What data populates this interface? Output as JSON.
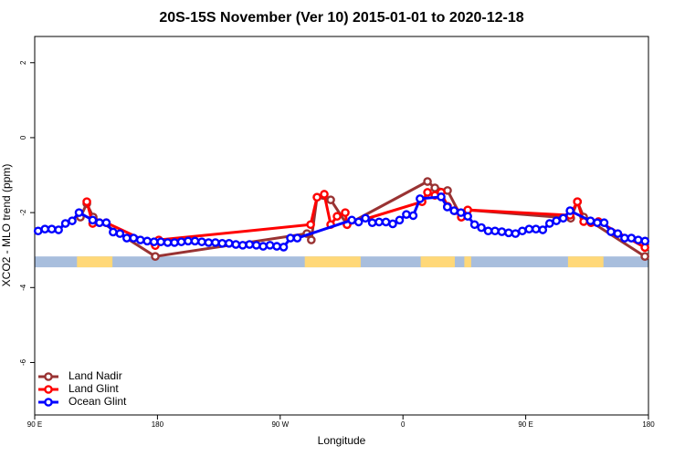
{
  "chart_data": {
    "type": "line",
    "title": "20S-15S November (Ver 10)   2015-01-01 to 2020-12-18",
    "xlabel": "Longitude",
    "ylabel": "XCO2 - MLO trend (ppm)",
    "xlim": [
      90,
      540
    ],
    "ylim": [
      -7.4,
      2.7
    ],
    "xticks": [
      {
        "value": 90,
        "label": "90 E"
      },
      180,
      {
        "value": 270,
        "label": "90 W"
      },
      {
        "value": 360,
        "label": "0"
      },
      {
        "value": 450,
        "label": "90 E"
      },
      {
        "value": 540,
        "label": "180"
      }
    ],
    "yticks": [
      -6,
      -4,
      -2,
      0,
      2
    ],
    "legend": "bottom-left",
    "surface_band": {
      "ylim": [
        -3.46,
        -3.17
      ],
      "ocean_color": "#a8bedd",
      "land_color": "#ffd878",
      "land": [
        [
          121,
          147
        ],
        [
          288,
          329
        ],
        [
          373,
          398
        ],
        [
          405,
          410
        ],
        [
          481,
          507
        ]
      ]
    },
    "series": [
      {
        "name": "Land Nadir",
        "color": "#993333",
        "x": [
          123.5,
          128.2,
          132.9,
          178.4,
          289.6,
          292.8,
          297,
          307,
          319,
          378,
          383.4,
          392.7,
          402.8,
          407.5,
          483,
          487.9,
          492.5,
          537.4
        ],
        "values": [
          -2.12,
          -1.76,
          -2.12,
          -3.17,
          -2.56,
          -2.73,
          -1.59,
          -1.66,
          -2.32,
          -1.17,
          -1.34,
          -1.41,
          -2.12,
          -1.93,
          -2.15,
          -1.71,
          -2.12,
          -3.17
        ]
      },
      {
        "name": "Land Glint",
        "color": "#ff0000",
        "x": [
          128.2,
          132.5,
          137.5,
          142.5,
          178.4,
          181,
          292.3,
          297,
          302.3,
          307,
          311.7,
          317.7,
          319,
          374,
          378,
          383.4,
          388,
          392.7,
          398,
          402.8,
          407.5,
          482.5,
          487.9,
          492.5,
          497.9,
          503.3,
          537.4
        ],
        "values": [
          -1.71,
          -2.29,
          -2.27,
          -2.27,
          -2.88,
          -2.73,
          -2.32,
          -1.59,
          -1.51,
          -2.32,
          -2.1,
          -2.0,
          -2.32,
          -1.71,
          -1.46,
          -1.54,
          -1.46,
          -1.83,
          -1.95,
          -2.12,
          -1.93,
          -2.07,
          -1.71,
          -2.24,
          -2.27,
          -2.24,
          -2.93
        ]
      },
      {
        "name": "Ocean Glint",
        "color": "#0000ff",
        "x": [
          92.5,
          97.5,
          102.5,
          107.5,
          112.5,
          117.5,
          122.5,
          132.5,
          137.5,
          142.5,
          147.5,
          152.5,
          157.5,
          162.5,
          167.5,
          172.5,
          177.5,
          182.5,
          187.5,
          192.5,
          197.5,
          202.5,
          207.5,
          212.5,
          217.5,
          222.5,
          227.5,
          232.5,
          237.5,
          242.5,
          247.5,
          252.5,
          257.5,
          262.5,
          267.5,
          272.5,
          277.5,
          282.5,
          322.5,
          327.5,
          332.5,
          337.5,
          342.5,
          347.5,
          352.5,
          357.5,
          362.5,
          367.5,
          372.5,
          388,
          392.5,
          397.5,
          402.5,
          407.5,
          412.5,
          417.5,
          422.5,
          427.5,
          432.5,
          437.5,
          442.5,
          447.5,
          452.5,
          457.5,
          462.5,
          467.5,
          472.5,
          477.5,
          482.5,
          497.5,
          502.5,
          507.5,
          512.5,
          517.5,
          522.5,
          527.5,
          532.5,
          537.5
        ],
        "values": [
          -2.49,
          -2.44,
          -2.44,
          -2.46,
          -2.29,
          -2.22,
          -2.0,
          -2.2,
          -2.27,
          -2.27,
          -2.52,
          -2.56,
          -2.68,
          -2.68,
          -2.73,
          -2.76,
          -2.78,
          -2.78,
          -2.8,
          -2.8,
          -2.78,
          -2.76,
          -2.76,
          -2.78,
          -2.8,
          -2.8,
          -2.82,
          -2.82,
          -2.85,
          -2.87,
          -2.85,
          -2.87,
          -2.9,
          -2.87,
          -2.9,
          -2.92,
          -2.68,
          -2.68,
          -2.2,
          -2.25,
          -2.15,
          -2.27,
          -2.25,
          -2.25,
          -2.3,
          -2.2,
          -2.05,
          -2.08,
          -1.63,
          -1.58,
          -1.85,
          -1.95,
          -2.0,
          -2.1,
          -2.32,
          -2.4,
          -2.49,
          -2.49,
          -2.51,
          -2.54,
          -2.56,
          -2.49,
          -2.44,
          -2.44,
          -2.46,
          -2.29,
          -2.22,
          -2.15,
          -1.95,
          -2.22,
          -2.27,
          -2.27,
          -2.51,
          -2.56,
          -2.68,
          -2.68,
          -2.73,
          -2.76
        ]
      }
    ]
  }
}
